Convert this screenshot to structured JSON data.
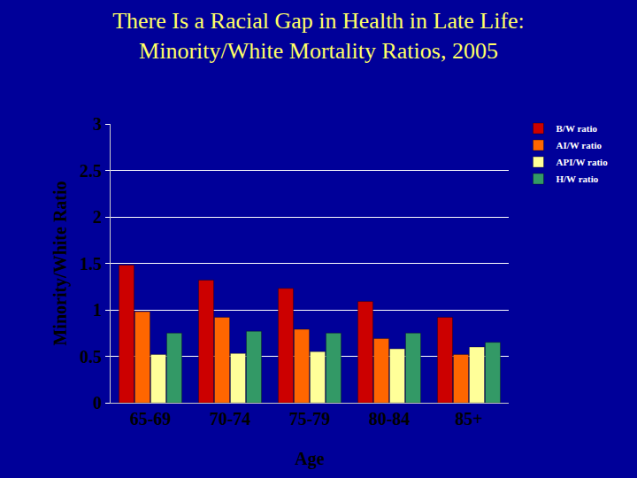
{
  "chart_data": {
    "type": "bar",
    "title": "There Is a Racial Gap in Health in Late Life:",
    "subtitle": "Minority/White Mortality Ratios, 2005",
    "x_label": "Age",
    "y_label": "Minority/White Ratio",
    "categories": [
      "65-69",
      "70-74",
      "75-79",
      "80-84",
      "85+"
    ],
    "series": [
      {
        "name": "B/W ratio",
        "color": "#cc0000",
        "values": [
          1.48,
          1.32,
          1.23,
          1.09,
          0.92
        ]
      },
      {
        "name": "AI/W ratio",
        "color": "#ff6600",
        "values": [
          0.98,
          0.92,
          0.79,
          0.69,
          0.52
        ]
      },
      {
        "name": "API/W ratio",
        "color": "#ffff99",
        "values": [
          0.52,
          0.53,
          0.55,
          0.58,
          0.6
        ]
      },
      {
        "name": "H/W ratio",
        "color": "#339966",
        "values": [
          0.75,
          0.77,
          0.75,
          0.75,
          0.65
        ]
      }
    ],
    "ylim": [
      0,
      3
    ],
    "yticks": [
      0,
      0.5,
      1,
      1.5,
      2,
      2.5,
      3
    ],
    "grid": true,
    "legend": "top right"
  }
}
